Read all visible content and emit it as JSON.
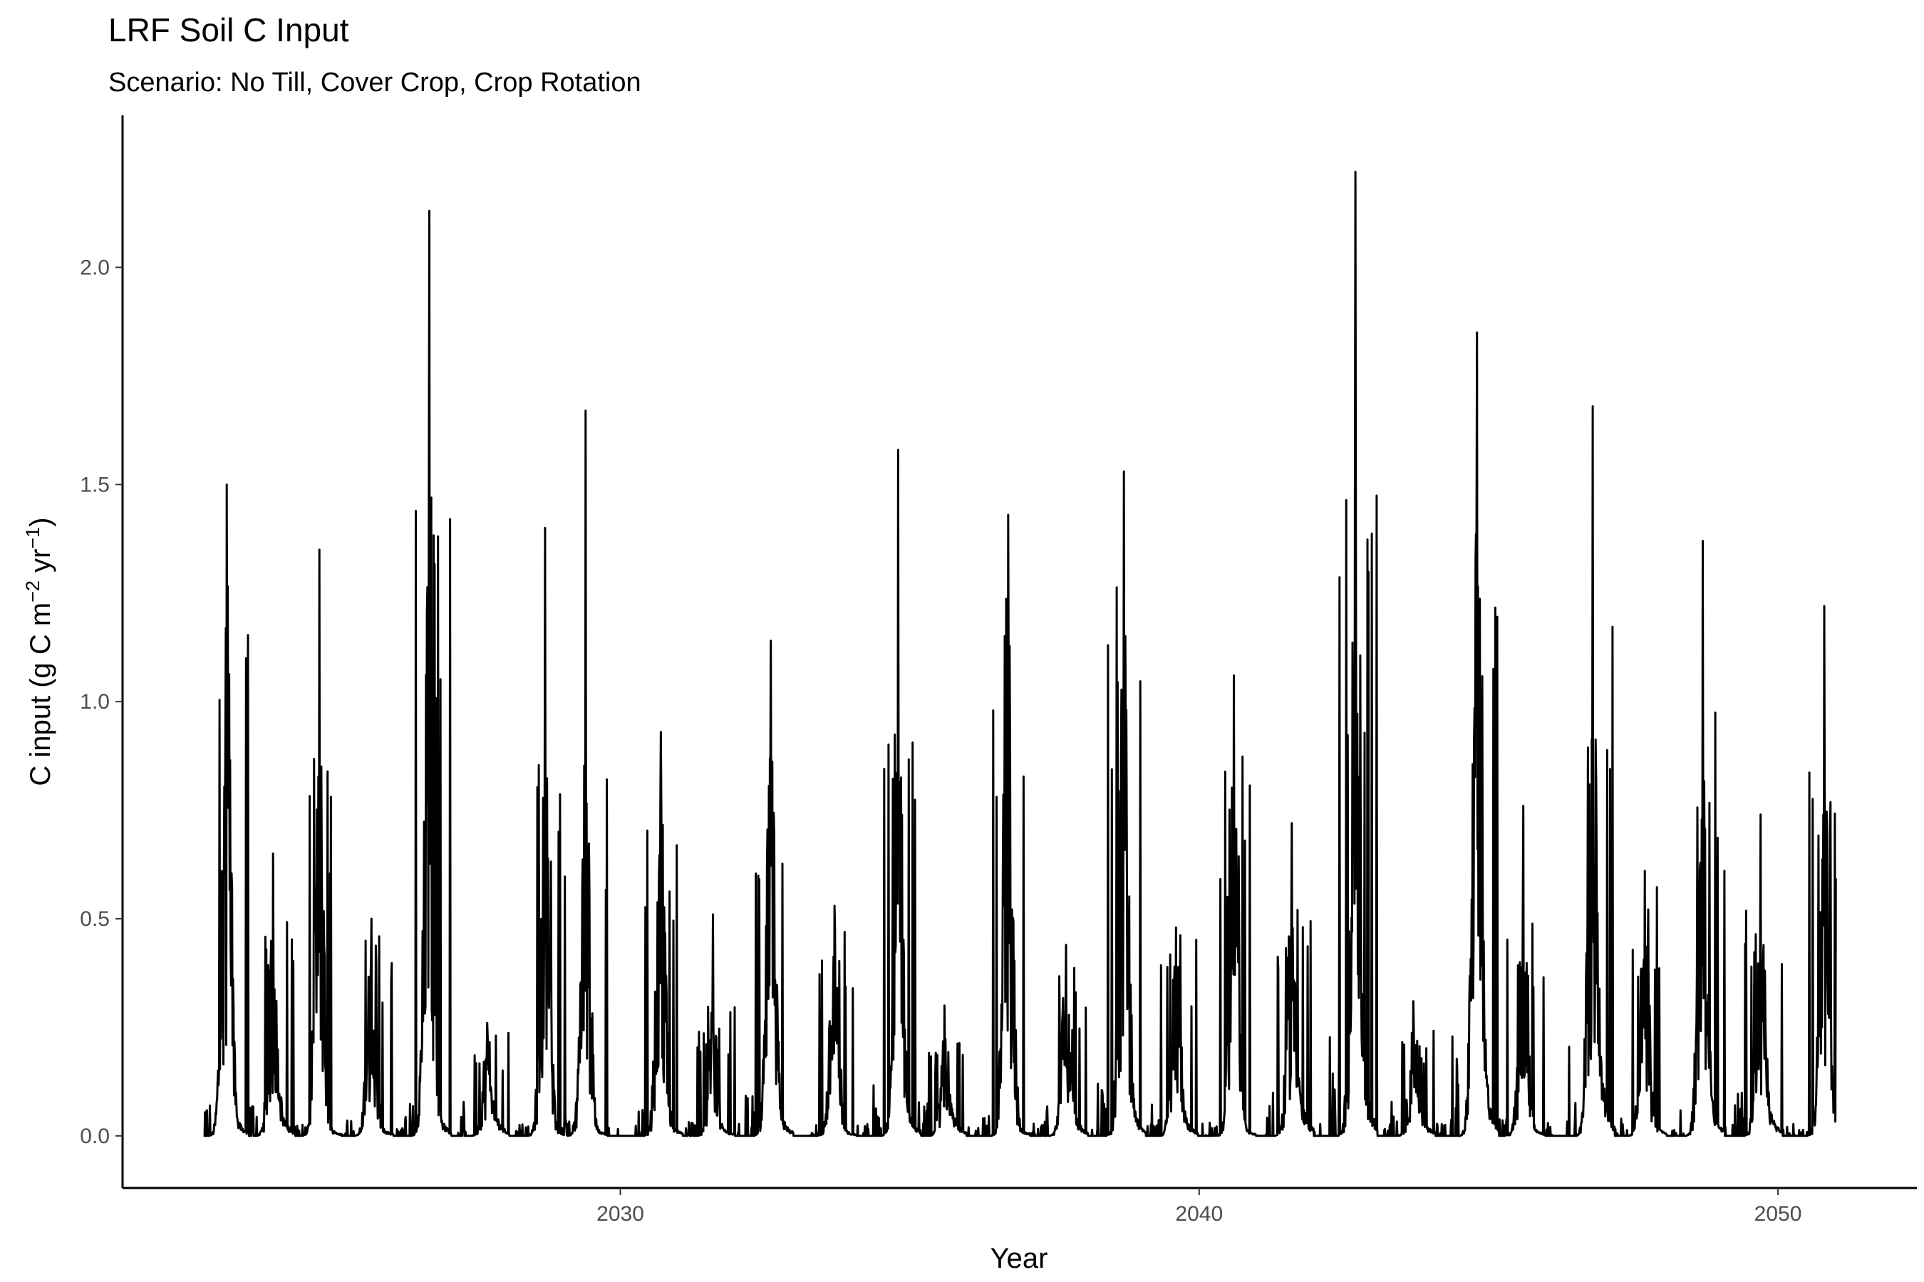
{
  "chart_data": {
    "type": "line",
    "title": "LRF Soil C Input",
    "subtitle": "Scenario: No Till, Cover Crop, Crop Rotation",
    "xlabel": "Year",
    "ylabel_parts": [
      "C input (g C m",
      "−2",
      " yr",
      "−1",
      ")"
    ],
    "xlim": [
      2021.4,
      2052.4
    ],
    "ylim": [
      -0.12,
      2.35
    ],
    "x_ticks": [
      2030,
      2040,
      2050
    ],
    "x_tick_labels": [
      "2030",
      "2040",
      "2050"
    ],
    "y_ticks": [
      0,
      0.5,
      1,
      1.5,
      2
    ],
    "y_tick_labels": [
      "0.0",
      "0.5",
      "1.0",
      "1.5",
      "2.0"
    ],
    "grid": false,
    "legend": "none",
    "line_color": "#000000",
    "series": [
      {
        "x_start": 2022.8,
        "x_end": 2051.0,
        "seasons": [
          {
            "year": 2023,
            "peak_x": 2023.2,
            "peak_y": 1.5,
            "second_y": 1.3,
            "tail_y": 0.2
          },
          {
            "year": 2024,
            "peak_x": 2024.0,
            "peak_y": 0.65,
            "second_y": 0.5,
            "tail_y": 0.22
          },
          {
            "year": 2025,
            "peak_x": 2024.8,
            "peak_y": 1.35,
            "second_y": 0.88,
            "tail_y": 0.1
          },
          {
            "year": 2026,
            "peak_x": 2025.7,
            "peak_y": 0.5,
            "second_y": 0.48,
            "tail_y": 0.1
          },
          {
            "year": 2027,
            "peak_x": 2026.7,
            "peak_y": 2.13,
            "second_y": 1.5,
            "tail_y": 0.25
          },
          {
            "year": 2028,
            "peak_x": 2027.7,
            "peak_y": 0.26,
            "second_y": 0.25,
            "tail_y": 0.2
          },
          {
            "year": 2029,
            "peak_x": 2028.7,
            "peak_y": 1.4,
            "second_y": 0.88,
            "tail_y": 0.07
          },
          {
            "year": 2030,
            "peak_x": 2029.4,
            "peak_y": 1.67,
            "second_y": 0.9,
            "tail_y": 0.1
          },
          {
            "year": 2031,
            "peak_x": 2030.7,
            "peak_y": 0.93,
            "second_y": 0.77,
            "tail_y": 0.15
          },
          {
            "year": 2032,
            "peak_x": 2031.6,
            "peak_y": 0.51,
            "second_y": 0.3,
            "tail_y": 0.08
          },
          {
            "year": 2033,
            "peak_x": 2032.6,
            "peak_y": 1.14,
            "second_y": 0.95,
            "tail_y": 0.24
          },
          {
            "year": 2034,
            "peak_x": 2033.7,
            "peak_y": 0.53,
            "second_y": 0.5,
            "tail_y": 0.07
          },
          {
            "year": 2035,
            "peak_x": 2034.8,
            "peak_y": 1.58,
            "second_y": 1.07,
            "tail_y": 0.3
          },
          {
            "year": 2036,
            "peak_x": 2035.6,
            "peak_y": 0.3,
            "second_y": 0.23,
            "tail_y": 0.2
          },
          {
            "year": 2037,
            "peak_x": 2036.7,
            "peak_y": 1.43,
            "second_y": 1.27,
            "tail_y": 0.12
          },
          {
            "year": 2038,
            "peak_x": 2037.7,
            "peak_y": 0.44,
            "second_y": 0.4,
            "tail_y": 0.2
          },
          {
            "year": 2039,
            "peak_x": 2038.7,
            "peak_y": 1.53,
            "second_y": 1.27,
            "tail_y": 0.3
          },
          {
            "year": 2040,
            "peak_x": 2039.6,
            "peak_y": 0.48,
            "second_y": 0.47,
            "tail_y": 0.2
          },
          {
            "year": 2041,
            "peak_x": 2040.6,
            "peak_y": 1.06,
            "second_y": 0.9,
            "tail_y": 0.1
          },
          {
            "year": 2042,
            "peak_x": 2041.6,
            "peak_y": 0.72,
            "second_y": 0.6,
            "tail_y": 0.4
          },
          {
            "year": 2043,
            "peak_x": 2042.7,
            "peak_y": 2.22,
            "second_y": 1.5,
            "tail_y": 0.59
          },
          {
            "year": 2044,
            "peak_x": 2043.7,
            "peak_y": 0.31,
            "second_y": 0.26,
            "tail_y": 0.2
          },
          {
            "year": 2045,
            "peak_x": 2044.8,
            "peak_y": 1.85,
            "second_y": 1.43,
            "tail_y": 0.58
          },
          {
            "year": 2046,
            "peak_x": 2045.6,
            "peak_y": 0.76,
            "second_y": 0.56,
            "tail_y": 0.1
          },
          {
            "year": 2047,
            "peak_x": 2046.8,
            "peak_y": 1.68,
            "second_y": 1.18,
            "tail_y": 0.58
          },
          {
            "year": 2048,
            "peak_x": 2047.7,
            "peak_y": 0.61,
            "second_y": 0.58,
            "tail_y": 0.15
          },
          {
            "year": 2049,
            "peak_x": 2048.7,
            "peak_y": 1.37,
            "second_y": 1.0,
            "tail_y": 0.3
          },
          {
            "year": 2050,
            "peak_x": 2049.7,
            "peak_y": 0.74,
            "second_y": 0.57,
            "tail_y": 0.25
          },
          {
            "year": 2051,
            "peak_x": 2050.8,
            "peak_y": 1.22,
            "second_y": 0.9,
            "tail_y": 0.05
          }
        ]
      }
    ]
  }
}
